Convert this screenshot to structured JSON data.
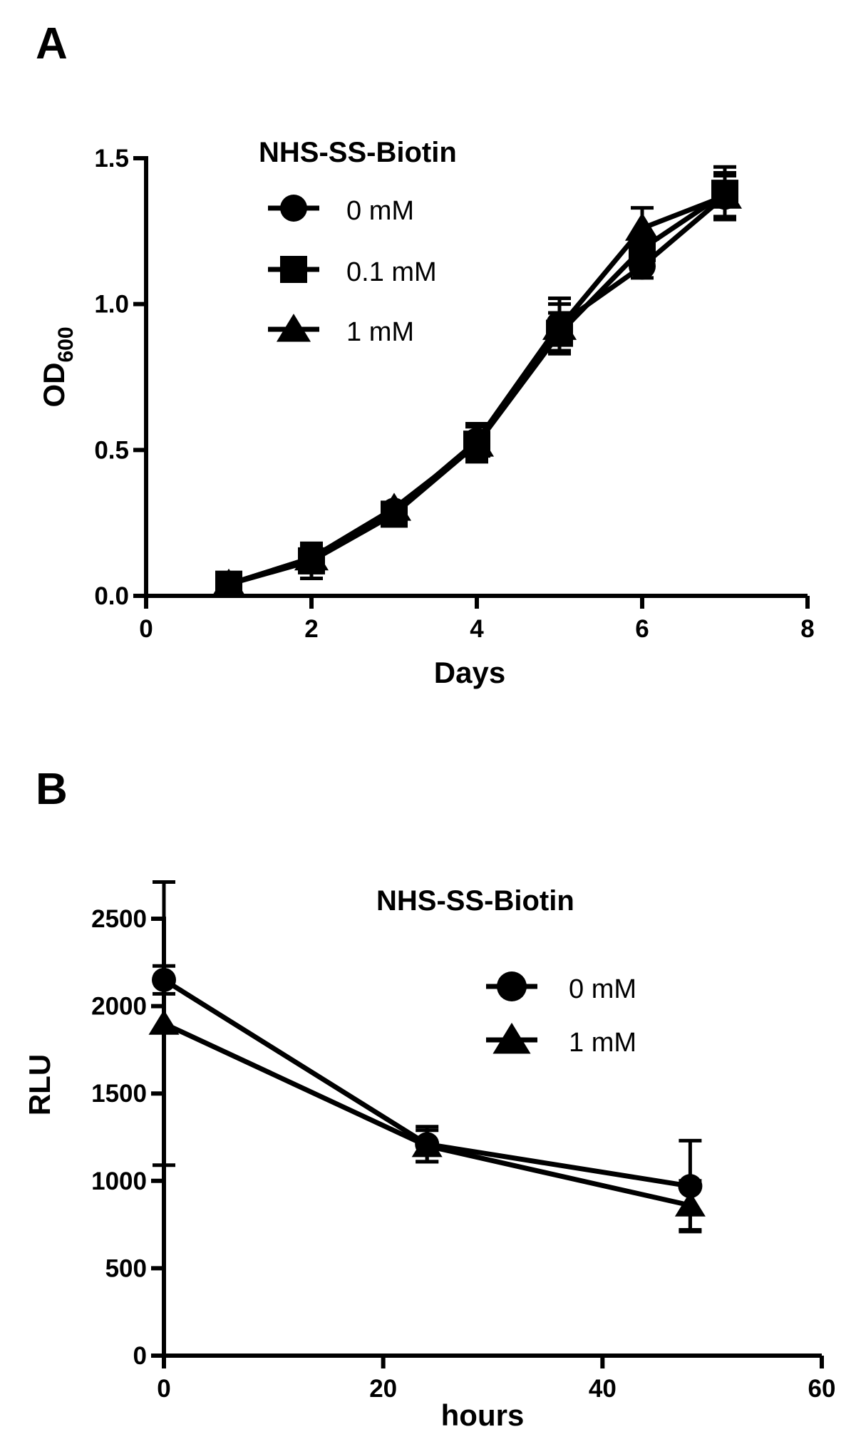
{
  "panels": [
    {
      "letter": "A",
      "legend_title": "NHS-SS-Biotin",
      "chart_data": {
        "type": "line",
        "xlabel": "Days",
        "ylabel": "OD",
        "ylabel_sub": "600",
        "xlim": [
          0,
          8
        ],
        "ylim": [
          0,
          1.5
        ],
        "xticks": [
          "0",
          "2",
          "4",
          "6",
          "8"
        ],
        "yticks": [
          "0.0",
          "0.5",
          "1.0",
          "1.5"
        ],
        "grid": false,
        "legend_position": "top-left",
        "series": [
          {
            "name": "0 mM",
            "marker": "circle",
            "x": [
              1,
              2,
              3,
              4,
              5,
              6,
              7
            ],
            "y": [
              0.04,
              0.13,
              0.29,
              0.53,
              0.93,
              1.13,
              1.37
            ],
            "err": [
              0.01,
              0.04,
              0.02,
              0.06,
              0.09,
              0.04,
              0.07
            ]
          },
          {
            "name": "0.1 mM",
            "marker": "square",
            "x": [
              1,
              2,
              3,
              4,
              5,
              6,
              7
            ],
            "y": [
              0.04,
              0.12,
              0.28,
              0.52,
              0.9,
              1.19,
              1.38
            ],
            "err": [
              0.01,
              0.06,
              0.02,
              0.06,
              0.07,
              0.05,
              0.09
            ]
          },
          {
            "name": "1 mM",
            "marker": "triangle",
            "x": [
              1,
              2,
              3,
              4,
              5,
              6,
              7
            ],
            "y": [
              0.04,
              0.13,
              0.3,
              0.52,
              0.92,
              1.26,
              1.37
            ],
            "err": [
              0.01,
              0.05,
              0.02,
              0.06,
              0.08,
              0.07,
              0.08
            ]
          }
        ]
      }
    },
    {
      "letter": "B",
      "legend_title": "NHS-SS-Biotin",
      "chart_data": {
        "type": "line",
        "xlabel": "hours",
        "ylabel": "RLU",
        "ylabel_sub": "",
        "xlim": [
          0,
          60
        ],
        "ylim": [
          0,
          2500
        ],
        "xticks": [
          "0",
          "20",
          "40",
          "60"
        ],
        "yticks": [
          "0",
          "500",
          "1000",
          "1500",
          "2000",
          "2500"
        ],
        "grid": false,
        "legend_position": "top-right",
        "series": [
          {
            "name": "0 mM",
            "marker": "circle",
            "x": [
              0,
              24,
              48
            ],
            "y": [
              2150,
              1210,
              970
            ],
            "err": [
              80,
              100,
              260
            ]
          },
          {
            "name": "1 mM",
            "marker": "triangle",
            "x": [
              0,
              24,
              48
            ],
            "y": [
              1900,
              1200,
              860
            ],
            "err": [
              810,
              90,
              140
            ]
          }
        ]
      }
    }
  ]
}
